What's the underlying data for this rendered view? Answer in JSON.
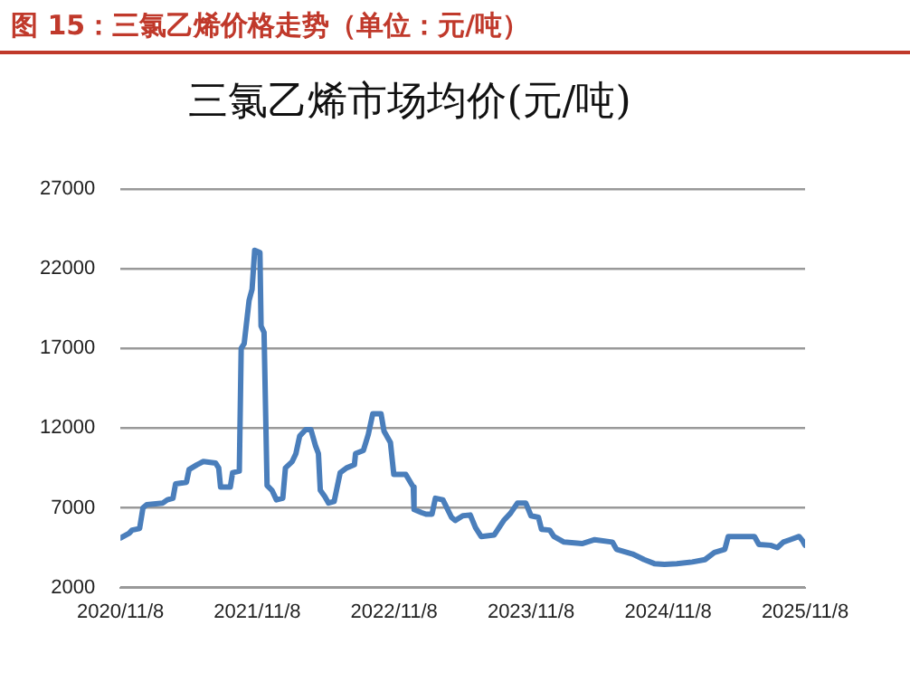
{
  "chart_data": {
    "type": "line",
    "title": "图 15：三氯乙烯价格走势（单位：元/吨）",
    "subtitle": "三氯乙烯市场均价(元/吨)",
    "x": [
      "2020-11-08",
      "2020-12-01",
      "2020-12-09",
      "2020-12-29",
      "2021-01-07",
      "2021-01-17",
      "2021-03-01",
      "2021-03-13",
      "2021-03-28",
      "2021-04-04",
      "2021-05-03",
      "2021-05-10",
      "2021-05-31",
      "2021-06-17",
      "2021-07-20",
      "2021-07-28",
      "2021-08-02",
      "2021-08-28",
      "2021-09-03",
      "2021-09-21",
      "2021-09-26",
      "2021-10-04",
      "2021-10-17",
      "2021-10-25",
      "2021-11-01",
      "2021-11-15",
      "2021-11-18",
      "2021-11-26",
      "2021-12-04",
      "2021-12-17",
      "2021-12-29",
      "2022-01-15",
      "2022-01-22",
      "2022-02-09",
      "2022-02-19",
      "2022-03-01",
      "2022-03-17",
      "2022-03-31",
      "2022-04-12",
      "2022-04-20",
      "2022-04-25",
      "2022-05-07",
      "2022-05-17",
      "2022-06-01",
      "2022-06-17",
      "2022-07-04",
      "2022-07-25",
      "2022-07-28",
      "2022-08-18",
      "2022-08-31",
      "2022-09-12",
      "2022-10-04",
      "2022-10-12",
      "2022-10-29",
      "2022-11-07",
      "2022-12-09",
      "2022-12-29",
      "2022-12-31",
      "2023-01-20",
      "2023-02-01",
      "2023-02-17",
      "2023-02-26",
      "2023-03-18",
      "2023-04-10",
      "2023-04-20",
      "2023-05-10",
      "2023-05-30",
      "2023-06-13",
      "2023-06-28",
      "2023-08-02",
      "2023-08-27",
      "2023-09-14",
      "2023-10-03",
      "2023-10-25",
      "2023-11-08",
      "2023-11-28",
      "2023-12-06",
      "2023-12-28",
      "2024-01-08",
      "2024-02-04",
      "2024-03-23",
      "2024-04-26",
      "2024-06-12",
      "2024-06-23",
      "2024-08-05",
      "2024-09-05",
      "2024-10-02",
      "2024-10-29",
      "2024-12-01",
      "2025-01-11",
      "2025-02-14",
      "2025-03-11",
      "2025-04-08",
      "2025-04-17",
      "2025-06-26",
      "2025-07-08",
      "2025-08-08",
      "2025-08-26",
      "2025-09-11",
      "2025-09-29",
      "2025-10-23",
      "2025-11-01",
      "2025-11-08"
    ],
    "series": [
      {
        "color": "#4a7ebb",
        "values": [
          5100,
          5400,
          5600,
          5700,
          7000,
          7200,
          7300,
          7500,
          7600,
          8500,
          8600,
          9400,
          9700,
          9900,
          9800,
          9500,
          8300,
          8300,
          9200,
          9300,
          17000,
          17300,
          20000,
          20700,
          23150,
          23000,
          18400,
          18000,
          8400,
          8100,
          7500,
          7600,
          9500,
          9900,
          10400,
          11500,
          11900,
          11900,
          10900,
          10400,
          8100,
          7700,
          7300,
          7400,
          9200,
          9500,
          9700,
          10400,
          10600,
          11600,
          12900,
          12900,
          11800,
          11100,
          9100,
          9100,
          8300,
          6900,
          6700,
          6600,
          6600,
          7600,
          7500,
          6400,
          6200,
          6500,
          6550,
          5750,
          5200,
          5300,
          6200,
          6650,
          7300,
          7300,
          6500,
          6400,
          5650,
          5600,
          5200,
          4850,
          4750,
          5000,
          4850,
          4400,
          4100,
          3750,
          3500,
          3450,
          3500,
          3600,
          3750,
          4200,
          4400,
          5200,
          5200,
          4700,
          4650,
          4500,
          4850,
          5000,
          5200,
          4950,
          4650
        ]
      }
    ],
    "xlim": [
      "2020-11-08",
      "2025-11-08"
    ],
    "xticks": [
      {
        "value": "2020-11-08",
        "label": "2020/11/8"
      },
      {
        "value": "2021-11-08",
        "label": "2021/11/8"
      },
      {
        "value": "2022-11-08",
        "label": "2022/11/8"
      },
      {
        "value": "2023-11-08",
        "label": "2023/11/8"
      },
      {
        "value": "2024-11-08",
        "label": "2024/11/8"
      },
      {
        "value": "2025-11-08",
        "label": "2025/11/8"
      }
    ],
    "ylim": [
      2000,
      27000
    ],
    "yticks": [
      2000,
      7000,
      12000,
      17000,
      22000,
      27000
    ],
    "grid": "y",
    "legend": false,
    "marker": "none",
    "line_style": "solid"
  }
}
